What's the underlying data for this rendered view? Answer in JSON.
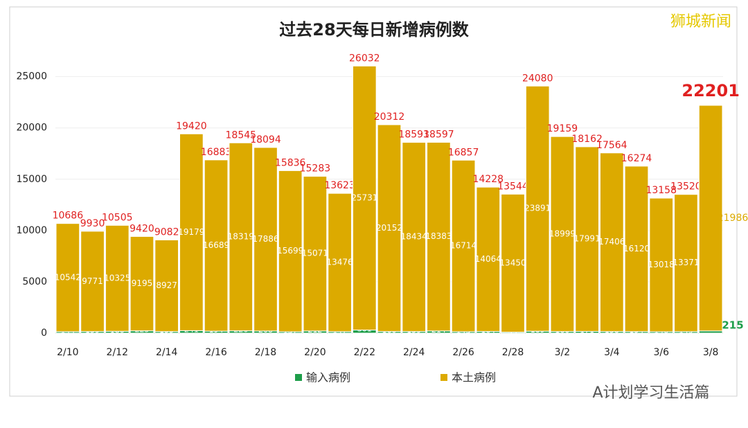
{
  "chart_data": {
    "type": "stacked-bar",
    "title": "过去28天每日新增病例数",
    "categories": [
      "2/10",
      null,
      "2/12",
      null,
      "2/14",
      null,
      "2/16",
      null,
      "2/18",
      null,
      "2/20",
      null,
      "2/22",
      null,
      "2/24",
      null,
      "2/26",
      null,
      "2/28",
      null,
      "3/2",
      null,
      "3/4",
      null,
      "3/6",
      null,
      "3/8"
    ],
    "series": [
      {
        "name": "输入病例",
        "color": "#1e9e4a",
        "values": [
          144,
          159,
          180,
          225,
          155,
          241,
          194,
          226,
          208,
          137,
          212,
          147,
          301,
          160,
          159,
          214,
          143,
          164,
          94,
          189,
          160,
          171,
          158,
          154,
          140,
          149,
          215
        ]
      },
      {
        "name": "本土病例",
        "color": "#dcaa00",
        "values": [
          10542,
          9771,
          10325,
          9195,
          8927,
          19179,
          16689,
          18319,
          17886,
          15699,
          15071,
          13476,
          25731,
          20152,
          18434,
          18383,
          16714,
          14064,
          13450,
          23891,
          18999,
          17991,
          17406,
          16120,
          13018,
          13371,
          21986
        ]
      }
    ],
    "totals": [
      10686,
      9930,
      10505,
      9420,
      9082,
      19420,
      16883,
      18545,
      18094,
      15836,
      15283,
      13623,
      26032,
      20312,
      18593,
      18597,
      16857,
      14228,
      13544,
      24080,
      19159,
      18162,
      17564,
      16274,
      13158,
      13520,
      22201
    ],
    "ylim": [
      0,
      27000
    ],
    "yticks": [
      0,
      5000,
      10000,
      15000,
      20000,
      25000
    ],
    "grid": true,
    "legend": "bottom",
    "watermarks": [
      "狮城新闻",
      "A计划学习生活篇"
    ]
  }
}
